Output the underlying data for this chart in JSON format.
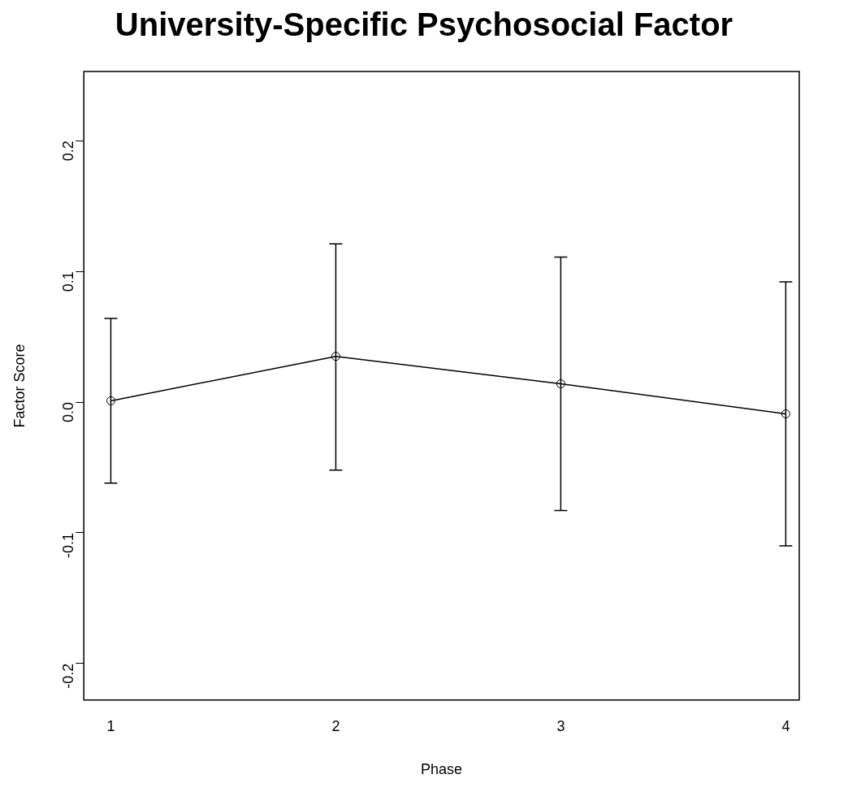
{
  "chart_data": {
    "type": "line",
    "title": "University-Specific Psychosocial Factor",
    "xlabel": "Phase",
    "ylabel": "Factor Score",
    "x": [
      1,
      2,
      3,
      4
    ],
    "series": [
      {
        "color": "#000000",
        "values": [
          0.001,
          0.035,
          0.014,
          -0.009
        ],
        "errors": [
          [
            -0.062,
            0.064
          ],
          [
            -0.052,
            0.121
          ],
          [
            -0.083,
            0.111
          ],
          [
            -0.11,
            0.092
          ]
        ]
      }
    ],
    "xlim": [
      0.88,
      4.06
    ],
    "xticks": [
      1,
      2,
      3,
      4
    ],
    "ylim": [
      -0.228,
      0.253
    ],
    "yticks": [
      {
        "value": -0.2,
        "label": "-0.2"
      },
      {
        "value": -0.1,
        "label": "-0.1"
      },
      {
        "value": 0,
        "label": "0.0"
      },
      {
        "value": 0.1,
        "label": "0.1"
      },
      {
        "value": 0.2,
        "label": "0.2"
      }
    ],
    "grid": false,
    "legend": false,
    "marker": "circle",
    "line_style": "solid"
  }
}
